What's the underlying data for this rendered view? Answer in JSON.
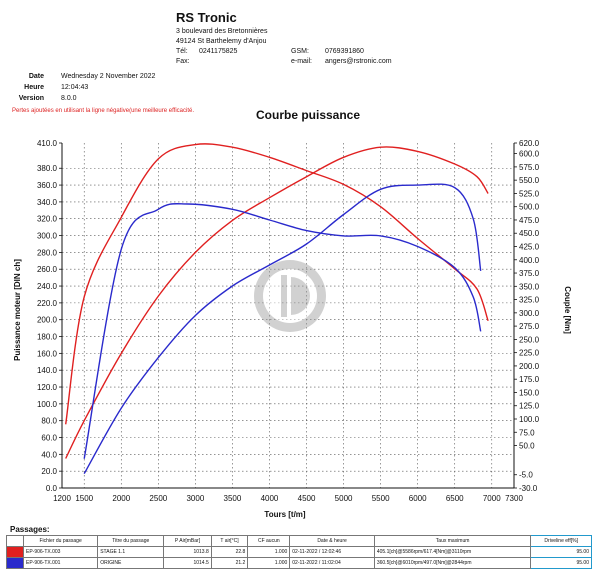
{
  "header": {
    "company": "RS Tronic",
    "address1": "3 boulevard des Bretonnières",
    "address2": "49124 St Barthelemy d'Anjou",
    "tel_label": "Tél:",
    "tel": "0241175825",
    "gsm_label": "GSM:",
    "gsm": "0769391860",
    "fax_label": "Fax:",
    "email_label": "e-mail:",
    "email": "angers@rstronic.com"
  },
  "meta": {
    "date_label": "Date",
    "date": "Wednesday 2 November 2022",
    "time_label": "Heure",
    "time": "12:04:43",
    "version_label": "Version",
    "version": "8.0.0"
  },
  "loss_note": "Pertes ajoutées en utilisant la ligne négative(une meilleure efficacité.",
  "chart_data": {
    "type": "line",
    "title": "Courbe puissance",
    "xlabel": "Tours [t/m]",
    "ylabel_left": "Puissance moteur [DIN ch]",
    "ylabel_right": "Couple [Nm]",
    "xlim": [
      1200,
      7300
    ],
    "ylim_left": [
      0,
      410
    ],
    "ylim_right": [
      -30,
      620
    ],
    "x_ticks": [
      "1200",
      "1500",
      "2000",
      "2500",
      "3000",
      "3500",
      "4000",
      "4500",
      "5000",
      "5500",
      "6000",
      "6500",
      "7000",
      "7300"
    ],
    "y_left_ticks": [
      "0.0",
      "20.0",
      "40.0",
      "60.0",
      "80.0",
      "100.0",
      "120.0",
      "140.0",
      "160.0",
      "180.0",
      "200.0",
      "220.0",
      "240.0",
      "260.0",
      "280.0",
      "300.0",
      "320.0",
      "340.0",
      "360.0",
      "380.0",
      "410.0"
    ],
    "y_right_ticks": [
      "-30.0",
      "-5.0",
      "50.0",
      "75.0",
      "100.0",
      "125.0",
      "150.0",
      "175.0",
      "200.0",
      "225.0",
      "250.0",
      "275.0",
      "300.0",
      "325.0",
      "350.0",
      "375.0",
      "400.0",
      "425.0",
      "450.0",
      "475.0",
      "500.0",
      "525.0",
      "550.0",
      "575.0",
      "600.0",
      "620.0"
    ],
    "grid": true,
    "series": [
      {
        "name": "STAGE 1.1 puissance",
        "color": "#e02020",
        "axis": "left",
        "x": [
          1250,
          1500,
          2000,
          2500,
          3000,
          3500,
          4000,
          4500,
          5000,
          5500,
          6000,
          6500,
          6800,
          6950
        ],
        "y": [
          35,
          80,
          160,
          228,
          280,
          318,
          345,
          370,
          393,
          405,
          400,
          385,
          370,
          350
        ]
      },
      {
        "name": "STAGE 1.1 couple",
        "color": "#e02020",
        "axis": "right",
        "x": [
          1250,
          1500,
          2000,
          2500,
          3000,
          3500,
          4000,
          4500,
          5000,
          5500,
          6000,
          6500,
          6800,
          6950
        ],
        "y": [
          90,
          330,
          480,
          590,
          617,
          612,
          593,
          568,
          542,
          500,
          440,
          383,
          345,
          285
        ]
      },
      {
        "name": "ORIGINE puissance",
        "color": "#2a2acc",
        "axis": "left",
        "x": [
          1500,
          2000,
          2500,
          3000,
          3500,
          4000,
          4500,
          5000,
          5500,
          6000,
          6500,
          6750,
          6850
        ],
        "y": [
          17,
          95,
          155,
          205,
          240,
          265,
          290,
          325,
          355,
          360,
          357,
          320,
          258
        ]
      },
      {
        "name": "ORIGINE couple",
        "color": "#2a2acc",
        "axis": "right",
        "x": [
          1500,
          2000,
          2500,
          2900,
          3500,
          4000,
          4500,
          5000,
          5500,
          6000,
          6500,
          6750,
          6850
        ],
        "y": [
          25,
          420,
          495,
          505,
          495,
          475,
          455,
          445,
          445,
          425,
          385,
          330,
          265
        ]
      }
    ]
  },
  "passages": {
    "title": "Passages:",
    "headers": [
      "Fichier du passage",
      "Titre du passage",
      "P Air[mBar]",
      "T air[°C]",
      "CF aucun",
      "Date & heure",
      "Taux maximum",
      "Driveline eff[%]"
    ],
    "rows": [
      {
        "color": "#e02020",
        "cells": [
          "EP-906-TX.003",
          "STAGE 1.1",
          "1013.8",
          "22.8",
          "1.000",
          "02-11-2022 / 12:02:46",
          "405.1[ch]@5586rpm/617.4[Nm]@3110rpm",
          "95.00"
        ]
      },
      {
        "color": "#2a2acc",
        "cells": [
          "EP-906-TX.001",
          "ORIGINE",
          "1014.5",
          "21.2",
          "1.000",
          "02-11-2022 / 11:02:04",
          "360.5[ch]@6010rpm/497.0[Nm]@2844rpm",
          "95.00"
        ]
      }
    ]
  }
}
